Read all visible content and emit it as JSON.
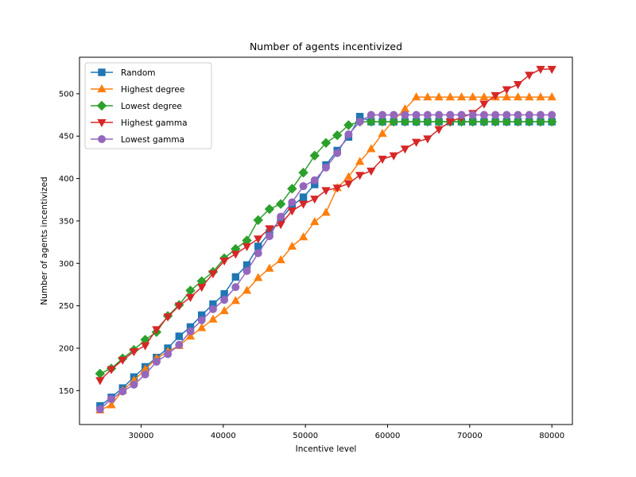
{
  "chart_data": {
    "type": "line",
    "title": "Number of agents incentivized",
    "xlabel": "Incentive level",
    "ylabel": "Number of agents incentivized",
    "xlim": [
      22500,
      82500
    ],
    "ylim": [
      110,
      543
    ],
    "xticks": [
      30000,
      40000,
      50000,
      60000,
      70000,
      80000
    ],
    "yticks": [
      150,
      200,
      250,
      300,
      350,
      400,
      450,
      500
    ],
    "grid": false,
    "legend_position": "top-left",
    "x": [
      25000,
      26375,
      27750,
      29125,
      30500,
      31875,
      33250,
      34625,
      36000,
      37375,
      38750,
      40125,
      41500,
      42875,
      44250,
      45625,
      47000,
      48375,
      49750,
      51125,
      52500,
      53875,
      55250,
      56625,
      58000,
      59375,
      60750,
      62125,
      63500,
      64875,
      66250,
      67625,
      69000,
      70375,
      71750,
      73125,
      74500,
      75875,
      77250,
      78625,
      80000
    ],
    "series": [
      {
        "name": "Random",
        "color": "#1f77b4",
        "marker": "square",
        "values": [
          132,
          142,
          153,
          166,
          178,
          189,
          200,
          214,
          225,
          239,
          252,
          264,
          284,
          298,
          320,
          336,
          352,
          368,
          378,
          393,
          416,
          433,
          449,
          473,
          467,
          467,
          467,
          467,
          467,
          467,
          467,
          467,
          467,
          467,
          467,
          467,
          467,
          467,
          467,
          467,
          467
        ]
      },
      {
        "name": "Highest degree",
        "color": "#ff7f0e",
        "marker": "triangle-up",
        "values": [
          127,
          133,
          150,
          162,
          175,
          188,
          196,
          203,
          214,
          224,
          234,
          244,
          256,
          268,
          283,
          294,
          304,
          320,
          331,
          349,
          360,
          389,
          402,
          420,
          435,
          453,
          469,
          482,
          496,
          496,
          496,
          496,
          496,
          496,
          496,
          496,
          496,
          496,
          496,
          496,
          496
        ]
      },
      {
        "name": "Lowest degree",
        "color": "#2ca02c",
        "marker": "diamond",
        "values": [
          170,
          176,
          188,
          198,
          210,
          219,
          238,
          251,
          268,
          279,
          290,
          306,
          317,
          327,
          351,
          364,
          370,
          388,
          407,
          427,
          442,
          451,
          463,
          467,
          467,
          467,
          467,
          467,
          467,
          467,
          467,
          467,
          467,
          467,
          467,
          467,
          467,
          467,
          467,
          467,
          467
        ]
      },
      {
        "name": "Highest gamma",
        "color": "#d62728",
        "marker": "triangle-down",
        "values": [
          162,
          175,
          186,
          196,
          203,
          222,
          237,
          250,
          260,
          272,
          288,
          303,
          311,
          320,
          329,
          341,
          346,
          362,
          370,
          376,
          386,
          389,
          394,
          404,
          409,
          423,
          427,
          435,
          443,
          447,
          458,
          467,
          472,
          477,
          488,
          498,
          505,
          511,
          522,
          529,
          529
        ]
      },
      {
        "name": "Lowest gamma",
        "color": "#9467bd",
        "marker": "circle",
        "values": [
          128,
          140,
          149,
          157,
          169,
          184,
          193,
          204,
          220,
          233,
          246,
          257,
          272,
          291,
          312,
          332,
          355,
          372,
          391,
          398,
          413,
          430,
          452,
          467,
          475,
          475,
          475,
          475,
          475,
          475,
          475,
          475,
          475,
          475,
          475,
          475,
          475,
          475,
          475,
          475,
          475
        ]
      }
    ]
  }
}
